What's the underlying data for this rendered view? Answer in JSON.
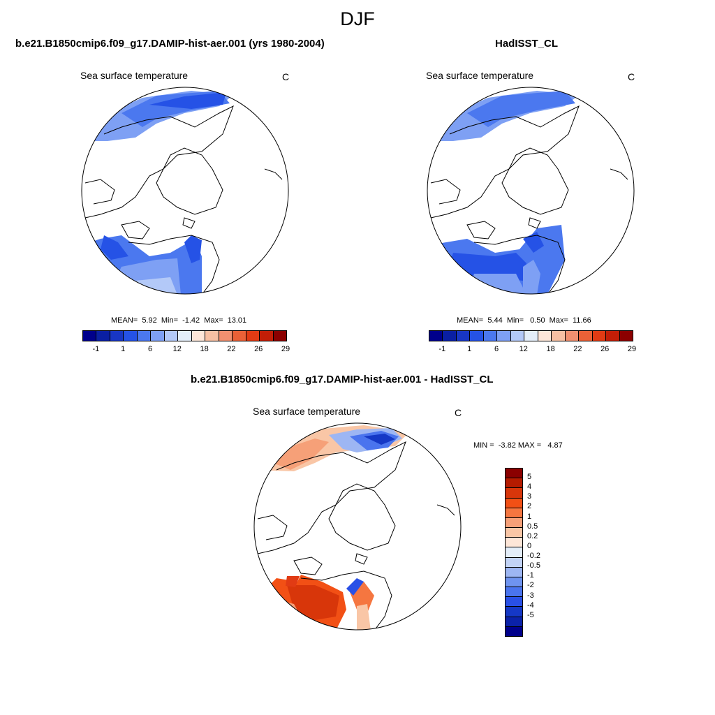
{
  "figure": {
    "title": "DJF"
  },
  "panels": [
    {
      "title": "b.e21.B1850cmip6.f09_g17.DAMIP-hist-aer.001 (yrs 1980-2004)",
      "variable": "Sea surface temperature",
      "units": "C",
      "stats": "MEAN=  5.92  Min=  -1.42  Max=  13.01"
    },
    {
      "title": "HadISST_CL",
      "variable": "Sea surface temperature",
      "units": "C",
      "stats": "MEAN=  5.44  Min=   0.50  Max=  11.66"
    },
    {
      "title": "b.e21.B1850cmip6.f09_g17.DAMIP-hist-aer.001 - HadISST_CL",
      "variable": "Sea surface temperature",
      "units": "C",
      "stats": "MIN =  -3.82 MAX =   4.87"
    }
  ],
  "colorbar_abs": {
    "colors": [
      "#00008b",
      "#0a1fa3",
      "#1836c4",
      "#2552e6",
      "#4b78ef",
      "#7ea0f4",
      "#b3c9f8",
      "#e4eef9",
      "#fde6d8",
      "#f7c0a3",
      "#f19070",
      "#ea6137",
      "#e13b14",
      "#c21e07",
      "#8b0000"
    ],
    "labels": [
      "-1",
      "1",
      "6",
      "12",
      "18",
      "22",
      "26",
      "29"
    ]
  },
  "colorbar_diff": {
    "colors": [
      "#8b0000",
      "#b51b00",
      "#d8360a",
      "#f25015",
      "#f57640",
      "#f6a078",
      "#f9c6a6",
      "#fde6d8",
      "#e4eef9",
      "#c2d3f6",
      "#9db6f3",
      "#6f94f0",
      "#4a74ee",
      "#2950e6",
      "#1538c6",
      "#0b22a9",
      "#00008b"
    ],
    "labels": [
      "5",
      "4",
      "3",
      "2",
      "1",
      "0.5",
      "0.2",
      "0",
      "-0.2",
      "-0.5",
      "-1",
      "-2",
      "-3",
      "-4",
      "-5"
    ]
  }
}
